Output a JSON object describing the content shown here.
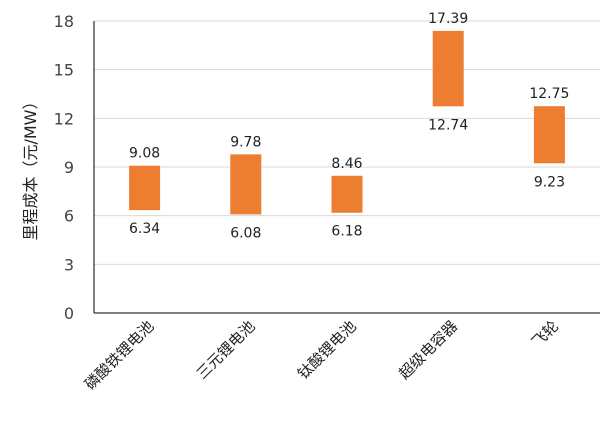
{
  "chart_data": {
    "type": "bar",
    "subtype": "floating-range",
    "title": "",
    "xlabel": "",
    "ylabel": "里程成本（元/MW）",
    "ylim": [
      0,
      18
    ],
    "yticks": [
      0,
      3,
      6,
      9,
      12,
      15,
      18
    ],
    "grid": "horizontal",
    "categories": [
      "磷酸铁锂电池",
      "三元锂电池",
      "钛酸锂电池",
      "超级电容器",
      "飞轮"
    ],
    "series": [
      {
        "low": [
          6.34,
          6.08,
          6.18,
          12.74,
          9.23
        ],
        "high": [
          9.08,
          9.78,
          8.46,
          17.39,
          12.75
        ]
      }
    ],
    "low_labels": [
      "6.34",
      "6.08",
      "6.18",
      "12.74",
      "9.23"
    ],
    "high_labels": [
      "9.08",
      "9.78",
      "8.46",
      "17.39",
      "12.75"
    ],
    "bar_color": "#ED7D31",
    "grid_color": "#D9D9D9",
    "axis_color": "#000000"
  }
}
